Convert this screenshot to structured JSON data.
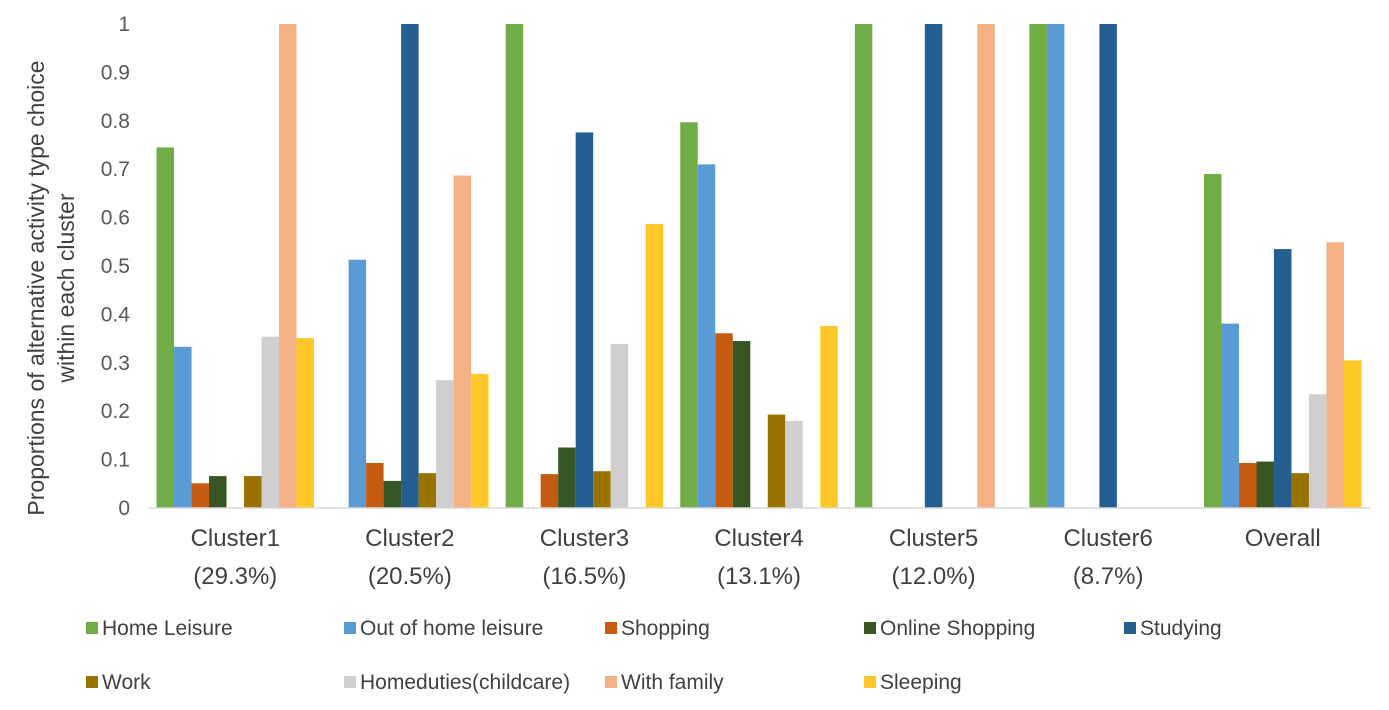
{
  "chart_data": {
    "type": "bar",
    "title": "",
    "xlabel": "",
    "ylabel": "Proportions of alternative activity type choice within each cluster",
    "ylabel_lines": [
      "Proportions of alternative activity type choice",
      "within each cluster"
    ],
    "ylim": [
      0,
      1
    ],
    "yticks": [
      "0",
      "0.1",
      "0.2",
      "0.3",
      "0.4",
      "0.5",
      "0.6",
      "0.7",
      "0.8",
      "0.9",
      "1"
    ],
    "grid": false,
    "legend_position": "bottom",
    "categories": [
      {
        "name": "Cluster1",
        "share": "(29.3%)"
      },
      {
        "name": "Cluster2",
        "share": "(20.5%)"
      },
      {
        "name": "Cluster3",
        "share": "(16.5%)"
      },
      {
        "name": "Cluster4",
        "share": "(13.1%)"
      },
      {
        "name": "Cluster5",
        "share": "(12.0%)"
      },
      {
        "name": "Cluster6",
        "share": "(8.7%)"
      },
      {
        "name": "Overall",
        "share": ""
      }
    ],
    "series": [
      {
        "name": "Home Leisure",
        "color": "#70AD47",
        "values": [
          0.745,
          0,
          1.0,
          0.797,
          1.0,
          1.0,
          0.69
        ]
      },
      {
        "name": "Out of home leisure",
        "color": "#5B9BD5",
        "values": [
          0.333,
          0.513,
          0,
          0.71,
          0,
          1.0,
          0.381
        ]
      },
      {
        "name": "Shopping",
        "color": "#C55A11",
        "values": [
          0.051,
          0.093,
          0.07,
          0.361,
          0,
          0,
          0.093
        ]
      },
      {
        "name": "Online Shopping",
        "color": "#375623",
        "values": [
          0.066,
          0.056,
          0.125,
          0.345,
          0,
          0,
          0.096
        ]
      },
      {
        "name": "Studying",
        "color": "#255E91",
        "values": [
          0,
          1.0,
          0.776,
          0,
          1.0,
          1.0,
          0.535
        ]
      },
      {
        "name": "Work",
        "color": "#997300",
        "values": [
          0.066,
          0.072,
          0.076,
          0.193,
          0,
          0,
          0.072
        ]
      },
      {
        "name": "Homeduties(childcare)",
        "color": "#D0CECE",
        "values": [
          0.354,
          0.264,
          0.339,
          0.18,
          0,
          0,
          0.235
        ]
      },
      {
        "name": "With family",
        "color": "#F4B183",
        "values": [
          1.0,
          0.687,
          0,
          0,
          1.0,
          0,
          0.549
        ]
      },
      {
        "name": "Sleeping",
        "color": "#FFC828",
        "values": [
          0.351,
          0.277,
          0.587,
          0.376,
          0,
          0,
          0.305
        ]
      }
    ]
  }
}
